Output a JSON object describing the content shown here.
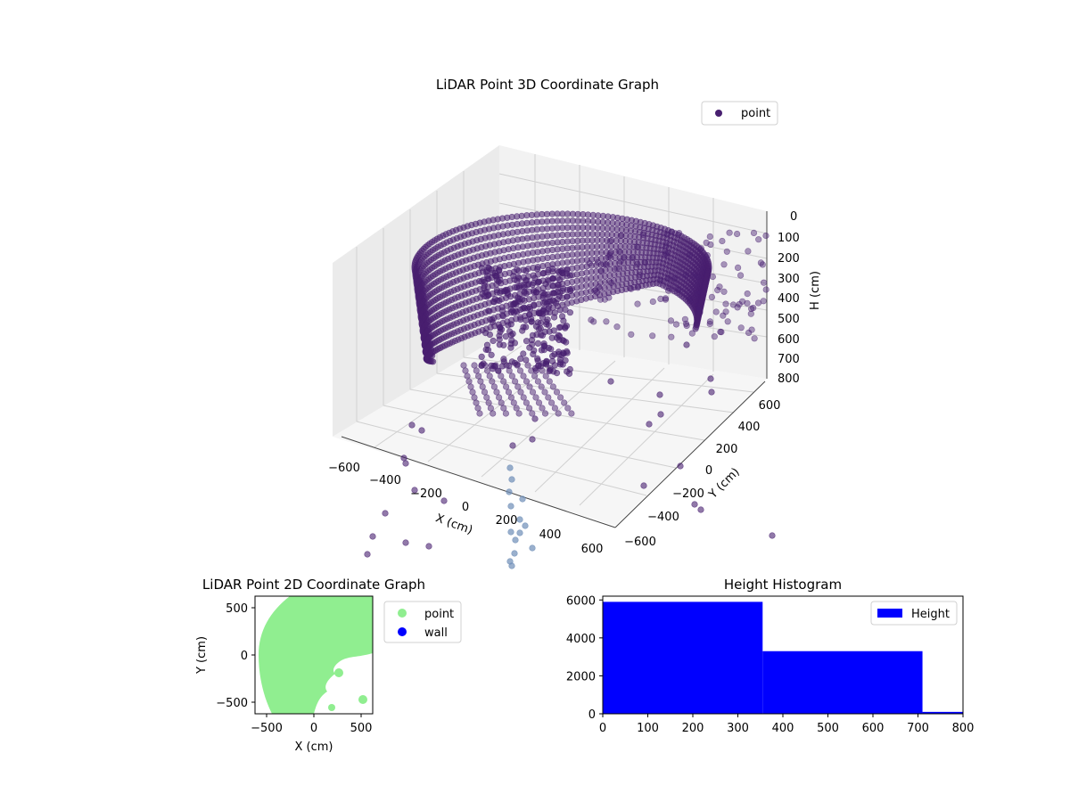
{
  "figure": {
    "charts": [
      {
        "id": "lidar-3d",
        "type": "scatter3d",
        "title": "LiDAR Point 3D Coordinate Graph",
        "xlabel": "X (cm)",
        "ylabel": "Y (cm)",
        "zlabel": "H (cm)",
        "x_ticks": [
          "−600",
          "−400",
          "−200",
          "0",
          "200",
          "400",
          "600"
        ],
        "y_ticks": [
          "−600",
          "−400",
          "−200",
          "0",
          "200",
          "400",
          "600"
        ],
        "z_ticks": [
          "0",
          "100",
          "200",
          "300",
          "400",
          "500",
          "600",
          "700",
          "800"
        ],
        "legend": "point",
        "colors": {
          "marker": "#481f70",
          "marker_light": "#6f8fb8"
        }
      },
      {
        "id": "lidar-2d",
        "type": "scatter",
        "title": "LiDAR Point 2D Coordinate Graph",
        "xlabel": "X (cm)",
        "ylabel": "Y (cm)",
        "x_ticks": [
          "−500",
          "0",
          "500"
        ],
        "y_ticks": [
          "500",
          "0",
          "−500"
        ],
        "xlim": [
          -620,
          620
        ],
        "ylim": [
          -620,
          620
        ],
        "series": [
          {
            "name": "point",
            "color": "#90ee90"
          },
          {
            "name": "wall",
            "color": "#0000ff"
          }
        ]
      },
      {
        "id": "height-histogram",
        "type": "bar",
        "title": "Height Histogram",
        "bins": [
          [
            0,
            355
          ],
          [
            355,
            710
          ],
          [
            710,
            800
          ]
        ],
        "values": [
          5900,
          3300,
          100
        ],
        "xlim": [
          0,
          800
        ],
        "ylim": [
          0,
          6200
        ],
        "x_ticks": [
          "0",
          "100",
          "200",
          "300",
          "400",
          "500",
          "600",
          "700",
          "800"
        ],
        "y_ticks": [
          "0",
          "2000",
          "4000",
          "6000"
        ],
        "legend": "Height",
        "colors": {
          "bar": "#0000ff"
        }
      }
    ]
  }
}
